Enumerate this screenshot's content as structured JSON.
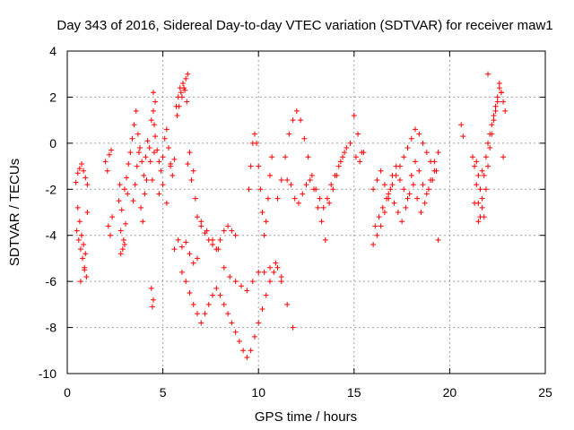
{
  "chart_data": {
    "type": "scatter",
    "title": "Day 343 of 2016, Sidereal Day-to-day VTEC variation (SDTVAR) for receiver maw1",
    "xlabel": "GPS time / hours",
    "ylabel": "SDTVAR / TECUs",
    "xlim": [
      0,
      25
    ],
    "ylim": [
      -10,
      4
    ],
    "grid": true,
    "marker": "+",
    "series_color": "#ff0000",
    "xticks": [
      0,
      5,
      10,
      15,
      20,
      25
    ],
    "yticks": [
      -10,
      -8,
      -6,
      -4,
      -2,
      0,
      2,
      4
    ],
    "xtick_labels": [
      "0",
      "5",
      "10",
      "15",
      "20",
      "25"
    ],
    "ytick_labels": [
      "-10",
      "-8",
      "-6",
      "-4",
      "-2",
      "0",
      "2",
      "4"
    ],
    "series": [
      {
        "name": "SDTVAR",
        "x": [
          0.45,
          0.55,
          0.65,
          0.75,
          0.85,
          0.95,
          1.05,
          0.5,
          0.6,
          0.7,
          0.8,
          0.9,
          1.0,
          0.55,
          0.65,
          0.75,
          0.85,
          0.95,
          1.05,
          0.7,
          0.9,
          2.0,
          2.1,
          2.2,
          2.3,
          2.15,
          2.25,
          2.35,
          2.7,
          2.8,
          2.9,
          3.0,
          3.1,
          3.2,
          3.3,
          2.75,
          2.85,
          2.95,
          3.05,
          3.15,
          2.8,
          3.0,
          3.4,
          3.5,
          3.6,
          3.7,
          3.8,
          3.9,
          4.0,
          4.1,
          4.2,
          3.45,
          3.55,
          3.65,
          3.75,
          3.85,
          3.95,
          4.05,
          4.15,
          4.3,
          4.4,
          4.5,
          4.6,
          4.35,
          4.45,
          4.55,
          4.4,
          4.5,
          4.45,
          4.5,
          4.55,
          4.6,
          4.7,
          4.8,
          4.9,
          5.0,
          5.1,
          5.2,
          5.3,
          5.4,
          5.5,
          5.6,
          4.8,
          5.0,
          5.2,
          5.4,
          5.7,
          5.8,
          5.9,
          6.0,
          6.1,
          6.2,
          6.3,
          5.75,
          5.85,
          5.95,
          6.05,
          6.15,
          6.25,
          5.6,
          5.8,
          6.0,
          6.2,
          6.4,
          6.6,
          6.8,
          6.3,
          6.5,
          6.7,
          6.4,
          6.6,
          6.0,
          6.2,
          6.4,
          6.6,
          6.8,
          7.0,
          7.2,
          7.4,
          7.6,
          7.8,
          8.0,
          8.2,
          8.4,
          8.6,
          8.8,
          9.0,
          9.2,
          9.4,
          9.6,
          9.8,
          10.0,
          10.2,
          10.4,
          10.6,
          10.8,
          11.0,
          11.2,
          7.0,
          7.3,
          7.6,
          7.9,
          8.2,
          8.5,
          8.8,
          9.1,
          9.4,
          9.7,
          10.0,
          10.3,
          10.6,
          10.9,
          11.2,
          11.5,
          11.8,
          6.8,
          7.0,
          7.2,
          7.4,
          7.6,
          7.8,
          8.0,
          8.2,
          8.4,
          8.6,
          8.8,
          9.5,
          9.6,
          9.7,
          9.8,
          9.9,
          10.0,
          10.1,
          10.2,
          10.3,
          10.4,
          10.5,
          10.6,
          10.7,
          11.0,
          11.2,
          11.4,
          11.6,
          11.8,
          12.0,
          12.2,
          12.4,
          12.6,
          12.8,
          13.0,
          13.2,
          13.4,
          13.6,
          13.8,
          14.0,
          14.2,
          14.4,
          14.6,
          14.8,
          11.5,
          11.7,
          11.9,
          12.1,
          12.3,
          12.5,
          12.7,
          12.9,
          13.1,
          13.3,
          13.5,
          13.7,
          13.9,
          14.1,
          14.3,
          14.5,
          15.0,
          15.2,
          15.4,
          15.1,
          15.3,
          15.5,
          16.0,
          16.2,
          16.4,
          16.6,
          16.8,
          17.0,
          17.2,
          17.4,
          17.6,
          17.8,
          18.0,
          18.2,
          18.4,
          18.6,
          18.8,
          19.0,
          19.2,
          19.4,
          16.1,
          16.3,
          16.5,
          16.7,
          16.9,
          17.1,
          17.3,
          17.5,
          17.7,
          17.9,
          18.1,
          18.3,
          18.5,
          18.7,
          18.9,
          19.1,
          19.3,
          16.0,
          16.2,
          16.4,
          16.6,
          16.8,
          17.0,
          17.2,
          17.4,
          17.6,
          17.8,
          18.0,
          18.2,
          18.4,
          18.6,
          18.8,
          19.0,
          19.2,
          19.4,
          21.2,
          21.3,
          21.4,
          21.5,
          21.6,
          21.7,
          21.8,
          21.9,
          22.0,
          22.1,
          22.2,
          22.3,
          22.4,
          22.5,
          22.6,
          22.7,
          22.8,
          22.9,
          21.4,
          21.5,
          21.6,
          21.7,
          21.8,
          21.9,
          22.0,
          22.1,
          22.2,
          22.3,
          22.4,
          22.5,
          22.6,
          22.7,
          22.8,
          20.6,
          20.7,
          21.3,
          21.5,
          21.7,
          22.0
        ],
        "y": [
          -1.7,
          -1.3,
          -1.1,
          -0.9,
          -1.2,
          -1.5,
          -1.8,
          -3.8,
          -4.2,
          -4.6,
          -5.0,
          -5.4,
          -5.8,
          -2.8,
          -3.4,
          -4.0,
          -4.4,
          -4.8,
          -3.0,
          -6.0,
          -5.5,
          -0.8,
          -1.2,
          -0.5,
          -0.3,
          -3.6,
          -4.0,
          -3.2,
          -2.5,
          -3.8,
          -4.6,
          -2.0,
          -1.5,
          -0.9,
          -0.4,
          -1.8,
          -2.9,
          -4.2,
          -3.5,
          -2.2,
          -4.8,
          -4.4,
          0.2,
          0.8,
          1.4,
          0.4,
          -0.2,
          -0.8,
          -1.4,
          -0.6,
          0.1,
          -2.5,
          -1.8,
          -1.0,
          -0.4,
          -2.8,
          -3.4,
          -2.2,
          -1.6,
          -0.2,
          1.0,
          2.2,
          1.8,
          -0.8,
          -1.6,
          -0.4,
          -6.3,
          -6.8,
          -7.1,
          1.4,
          0.8,
          0.3,
          -0.3,
          -0.8,
          -1.2,
          -0.6,
          0.2,
          0.6,
          -0.2,
          -0.9,
          -1.4,
          -0.7,
          -2.2,
          -1.8,
          -2.6,
          -1.0,
          1.6,
          2.0,
          2.4,
          2.0,
          2.4,
          2.8,
          3.0,
          1.2,
          1.6,
          2.2,
          2.6,
          2.3,
          1.8,
          -4.6,
          -4.2,
          -4.5,
          -4.3,
          -4.8,
          -5.2,
          -5.0,
          -0.9,
          -1.6,
          -2.4,
          -0.4,
          -1.2,
          -5.6,
          -6.0,
          -6.5,
          -7.0,
          -7.4,
          -7.8,
          -7.4,
          -7.0,
          -6.6,
          -6.3,
          -6.6,
          -7.0,
          -7.4,
          -7.8,
          -8.2,
          -8.6,
          -9.0,
          -9.3,
          -9.0,
          -8.4,
          -7.8,
          -7.2,
          -6.6,
          -6.0,
          -5.6,
          -5.4,
          -5.8,
          -3.4,
          -3.8,
          -4.2,
          -4.6,
          -5.4,
          -5.8,
          -6.0,
          -6.2,
          -6.4,
          -6.0,
          -5.6,
          -5.6,
          -5.4,
          -5.2,
          -6.0,
          -7.0,
          -8.0,
          -3.2,
          -3.6,
          -3.9,
          -4.2,
          -4.4,
          -4.6,
          -4.2,
          -3.8,
          -3.6,
          -3.8,
          -4.0,
          -2.0,
          -1.0,
          0.0,
          0.4,
          0.0,
          -1.0,
          -2.0,
          -3.0,
          -4.0,
          -3.4,
          -2.4,
          -1.4,
          -0.6,
          -2.4,
          -1.6,
          -0.6,
          0.4,
          1.0,
          1.4,
          1.0,
          0.2,
          -0.6,
          -1.4,
          -2.0,
          -2.4,
          -2.8,
          -2.4,
          -1.8,
          -1.4,
          -1.0,
          -0.6,
          -0.2,
          0.0,
          -1.6,
          -1.8,
          -2.4,
          -2.6,
          -2.2,
          -1.8,
          -1.6,
          -2.0,
          -2.8,
          -3.4,
          -4.2,
          -2.6,
          -2.0,
          -1.4,
          -0.8,
          -0.4,
          1.2,
          0.4,
          -0.4,
          -0.6,
          -0.8,
          -0.4,
          -2.0,
          -1.6,
          -1.2,
          -1.8,
          -2.2,
          -1.4,
          -1.0,
          -1.6,
          -2.0,
          -2.4,
          -1.4,
          -0.8,
          -1.2,
          -1.8,
          -2.2,
          -1.6,
          -0.8,
          -0.4,
          -3.6,
          -3.2,
          -2.8,
          -2.4,
          -2.0,
          -2.6,
          -3.0,
          -3.4,
          -2.8,
          -2.2,
          -1.8,
          -2.4,
          -3.0,
          -2.6,
          -2.0,
          -1.6,
          -1.2,
          -4.4,
          -4.0,
          -3.6,
          -3.0,
          -2.4,
          -1.8,
          -1.4,
          -1.0,
          -0.6,
          -0.2,
          0.2,
          0.6,
          0.4,
          0.0,
          -0.4,
          -0.8,
          -1.2,
          -4.2,
          -0.6,
          -1.0,
          -1.8,
          -2.6,
          -3.2,
          -2.4,
          -1.4,
          -0.6,
          0.0,
          0.4,
          0.8,
          1.2,
          1.6,
          2.0,
          2.4,
          2.2,
          1.8,
          1.4,
          -0.8,
          -1.4,
          -2.0,
          -2.8,
          -3.2,
          -2.0,
          -1.0,
          -0.2,
          0.4,
          1.0,
          1.4,
          1.8,
          2.6,
          2.2,
          -0.6,
          0.8,
          0.3,
          -2.6,
          -3.4,
          -1.2,
          3.0
        ]
      }
    ]
  }
}
